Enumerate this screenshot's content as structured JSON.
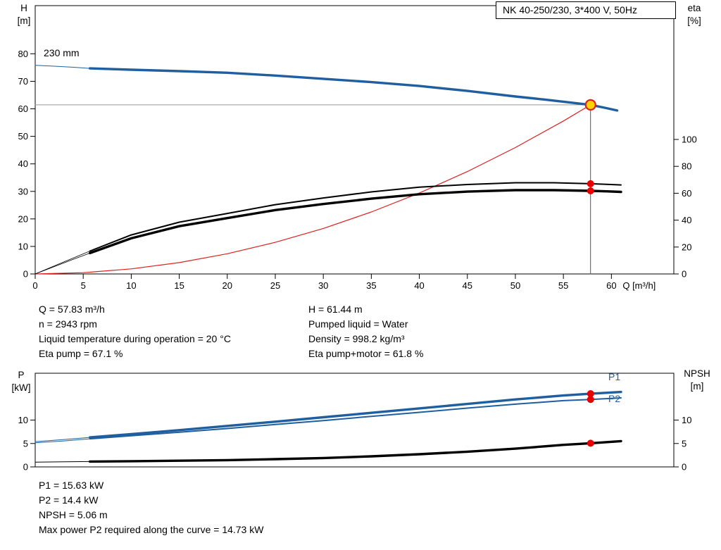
{
  "title_box": "NK 40-250/230, 3*400 V, 50Hz",
  "colors": {
    "curve_blue": "#1f5f9f",
    "curve_black": "#000000",
    "system_red": "#e02020",
    "duty_fill": "#ffd400",
    "duty_ring": "#e02020",
    "dot_red": "#e60000"
  },
  "chart_data": [
    {
      "type": "line",
      "title": "NK 40-250/230, 3*400 V, 50Hz",
      "xlabel": "Q [m³/h]",
      "axis_labels": {
        "left": [
          "H",
          "[m]"
        ],
        "right": [
          "eta",
          "[%]"
        ],
        "x": "Q [m³/h]"
      },
      "xlim": [
        0,
        66.5
      ],
      "ylim_left": [
        0,
        97.5
      ],
      "ylim_right": [
        0,
        199.5
      ],
      "x_ticks": [
        0,
        5,
        10,
        15,
        20,
        25,
        30,
        35,
        40,
        45,
        50,
        55,
        60
      ],
      "y_ticks_left": [
        0,
        10,
        20,
        30,
        40,
        50,
        60,
        70,
        80
      ],
      "y_ticks_right": [
        0,
        20,
        40,
        60,
        80,
        100
      ],
      "grid": false,
      "annotations": [
        {
          "text": "230 mm"
        }
      ],
      "series": [
        {
          "name": "duty-vline",
          "axis": "left",
          "color": "#555555",
          "width": 1,
          "points": [
            [
              57.83,
              0
            ],
            [
              57.83,
              61.44
            ]
          ]
        },
        {
          "name": "duty-hline",
          "axis": "left",
          "color": "#999999",
          "width": 1,
          "points": [
            [
              0,
              61.44
            ],
            [
              57.83,
              61.44
            ]
          ]
        },
        {
          "name": "system-curve",
          "axis": "left",
          "color": "#e02020",
          "width": 1.2,
          "points": [
            [
              0,
              0
            ],
            [
              5,
              0.46
            ],
            [
              10,
              1.84
            ],
            [
              15,
              4.13
            ],
            [
              20,
              7.35
            ],
            [
              25,
              11.48
            ],
            [
              30,
              16.53
            ],
            [
              35,
              22.51
            ],
            [
              40,
              29.4
            ],
            [
              45,
              37.2
            ],
            [
              50,
              45.93
            ],
            [
              55,
              55.57
            ],
            [
              57.83,
              61.44
            ]
          ]
        },
        {
          "name": "hq-leadin",
          "axis": "left",
          "color": "#1f5f9f",
          "width": 1,
          "points": [
            [
              0,
              75.8
            ],
            [
              2,
              75.5
            ],
            [
              4,
              75.1
            ],
            [
              5.7,
              74.7
            ]
          ]
        },
        {
          "name": "eta-pump-leadin",
          "axis": "right",
          "color": "#000000",
          "width": 0.8,
          "points": [
            [
              0,
              0
            ],
            [
              2,
              6
            ],
            [
              4,
              12
            ],
            [
              5.7,
              17
            ]
          ]
        },
        {
          "name": "eta-pump-motor-leadin",
          "axis": "right",
          "color": "#000000",
          "width": 0.8,
          "points": [
            [
              0,
              0
            ],
            [
              2,
              5.5
            ],
            [
              4,
              11
            ],
            [
              5.7,
              15.5
            ]
          ]
        },
        {
          "name": "eta-pump",
          "axis": "right",
          "color": "#000000",
          "width": 2,
          "points": [
            [
              5.7,
              17
            ],
            [
              10,
              29
            ],
            [
              15,
              38.5
            ],
            [
              20,
              45
            ],
            [
              25,
              51.5
            ],
            [
              30,
              56.5
            ],
            [
              35,
              61
            ],
            [
              40,
              64.5
            ],
            [
              45,
              66.5
            ],
            [
              50,
              67.8
            ],
            [
              54,
              67.8
            ],
            [
              57.83,
              67.1
            ],
            [
              59.5,
              66.6
            ],
            [
              61,
              66.2
            ]
          ]
        },
        {
          "name": "eta-pump-motor",
          "axis": "right",
          "color": "#000000",
          "width": 3.4,
          "points": [
            [
              5.7,
              15.5
            ],
            [
              10,
              26.5
            ],
            [
              15,
              35.5
            ],
            [
              20,
              41.5
            ],
            [
              25,
              47.5
            ],
            [
              30,
              52
            ],
            [
              35,
              56
            ],
            [
              40,
              59.3
            ],
            [
              45,
              61.2
            ],
            [
              50,
              62.3
            ],
            [
              54,
              62.3
            ],
            [
              57.83,
              61.8
            ],
            [
              59.5,
              61.4
            ],
            [
              61,
              61
            ]
          ]
        },
        {
          "name": "hq-curve",
          "axis": "left",
          "color": "#1f5f9f",
          "width": 3.4,
          "points": [
            [
              5.7,
              74.7
            ],
            [
              10,
              74.2
            ],
            [
              15,
              73.7
            ],
            [
              20,
              73.1
            ],
            [
              25,
              72.1
            ],
            [
              30,
              70.9
            ],
            [
              35,
              69.7
            ],
            [
              40,
              68.3
            ],
            [
              45,
              66.5
            ],
            [
              50,
              64.5
            ],
            [
              53,
              63.4
            ],
            [
              55,
              62.6
            ],
            [
              57.83,
              61.44
            ],
            [
              59.3,
              60.4
            ],
            [
              60.6,
              59.4
            ]
          ]
        }
      ],
      "markers": [
        {
          "name": "eta-pump-point",
          "axis": "right",
          "x": 57.83,
          "y": 67.1,
          "r": 5,
          "fill": "#e60000"
        },
        {
          "name": "eta-pump-motor-point",
          "axis": "right",
          "x": 57.83,
          "y": 61.8,
          "r": 5,
          "fill": "#e60000"
        },
        {
          "name": "duty-point",
          "axis": "left",
          "x": 57.83,
          "y": 61.44,
          "r": 7,
          "fill": "#ffd400",
          "stroke": "#e02020",
          "stroke_width": 2.2
        }
      ]
    },
    {
      "type": "line",
      "title": "",
      "xlabel": "",
      "axis_labels": {
        "left": [
          "P",
          "[kW]"
        ],
        "right": [
          "NPSH",
          "[m]"
        ]
      },
      "xlim": [
        0,
        66.5
      ],
      "ylim_left": [
        0,
        20
      ],
      "ylim_right": [
        0,
        20
      ],
      "x_ticks": [],
      "y_ticks_left": [
        0,
        5,
        10
      ],
      "y_ticks_right": [
        0,
        5,
        10
      ],
      "grid": false,
      "annotations": [
        {
          "text": "P1"
        },
        {
          "text": "P2"
        }
      ],
      "series": [
        {
          "name": "p1-leadin",
          "axis": "left",
          "color": "#1f5f9f",
          "width": 1,
          "points": [
            [
              0,
              5.4
            ],
            [
              3,
              5.85
            ],
            [
              5.7,
              6.3
            ]
          ]
        },
        {
          "name": "p2-leadin",
          "axis": "left",
          "color": "#1f5f9f",
          "width": 1,
          "points": [
            [
              0,
              5.15
            ],
            [
              3,
              5.55
            ],
            [
              5.7,
              6.0
            ]
          ]
        },
        {
          "name": "npsh-leadin",
          "axis": "right",
          "color": "#000000",
          "width": 1,
          "points": [
            [
              0,
              1.0
            ],
            [
              3,
              1.08
            ],
            [
              5.7,
              1.15
            ]
          ]
        },
        {
          "name": "p2-curve",
          "axis": "left",
          "color": "#1f5f9f",
          "width": 2,
          "points": [
            [
              5.7,
              6.0
            ],
            [
              10,
              6.65
            ],
            [
              15,
              7.4
            ],
            [
              20,
              8.2
            ],
            [
              25,
              9.05
            ],
            [
              30,
              9.9
            ],
            [
              35,
              10.8
            ],
            [
              40,
              11.65
            ],
            [
              45,
              12.55
            ],
            [
              50,
              13.4
            ],
            [
              55,
              14.15
            ],
            [
              57.83,
              14.4
            ],
            [
              61,
              14.73
            ]
          ]
        },
        {
          "name": "p1-curve",
          "axis": "left",
          "color": "#1f5f9f",
          "width": 3.4,
          "points": [
            [
              5.7,
              6.3
            ],
            [
              10,
              7.0
            ],
            [
              15,
              7.85
            ],
            [
              20,
              8.75
            ],
            [
              25,
              9.65
            ],
            [
              30,
              10.6
            ],
            [
              35,
              11.55
            ],
            [
              40,
              12.5
            ],
            [
              45,
              13.45
            ],
            [
              50,
              14.4
            ],
            [
              55,
              15.25
            ],
            [
              57.83,
              15.63
            ],
            [
              61,
              16.0
            ]
          ]
        },
        {
          "name": "npsh-curve",
          "axis": "right",
          "color": "#000000",
          "width": 3.4,
          "points": [
            [
              5.7,
              1.15
            ],
            [
              10,
              1.22
            ],
            [
              15,
              1.32
            ],
            [
              20,
              1.45
            ],
            [
              25,
              1.65
            ],
            [
              30,
              1.9
            ],
            [
              35,
              2.25
            ],
            [
              40,
              2.7
            ],
            [
              45,
              3.25
            ],
            [
              50,
              3.9
            ],
            [
              55,
              4.7
            ],
            [
              57.83,
              5.06
            ],
            [
              61,
              5.5
            ]
          ]
        }
      ],
      "markers": [
        {
          "name": "p1-point",
          "axis": "left",
          "x": 57.83,
          "y": 15.63,
          "r": 5,
          "fill": "#e60000"
        },
        {
          "name": "p2-point",
          "axis": "left",
          "x": 57.83,
          "y": 14.4,
          "r": 5,
          "fill": "#e60000"
        },
        {
          "name": "npsh-point",
          "axis": "right",
          "x": 57.83,
          "y": 5.06,
          "r": 5,
          "fill": "#e60000"
        }
      ]
    }
  ],
  "details_top": {
    "left": [
      "Q = 57.83 m³/h",
      "n = 2943 rpm",
      "Liquid temperature during operation = 20 °C",
      "Eta pump = 67.1 %"
    ],
    "right": [
      "H = 61.44 m",
      "Pumped liquid = Water",
      "Density = 998.2 kg/m³",
      "Eta pump+motor = 61.8 %"
    ]
  },
  "details_bottom": [
    "P1 = 15.63 kW",
    "P2 = 14.4 kW",
    "NPSH = 5.06 m",
    "Max power P2 required along the curve = 14.73 kW"
  ]
}
